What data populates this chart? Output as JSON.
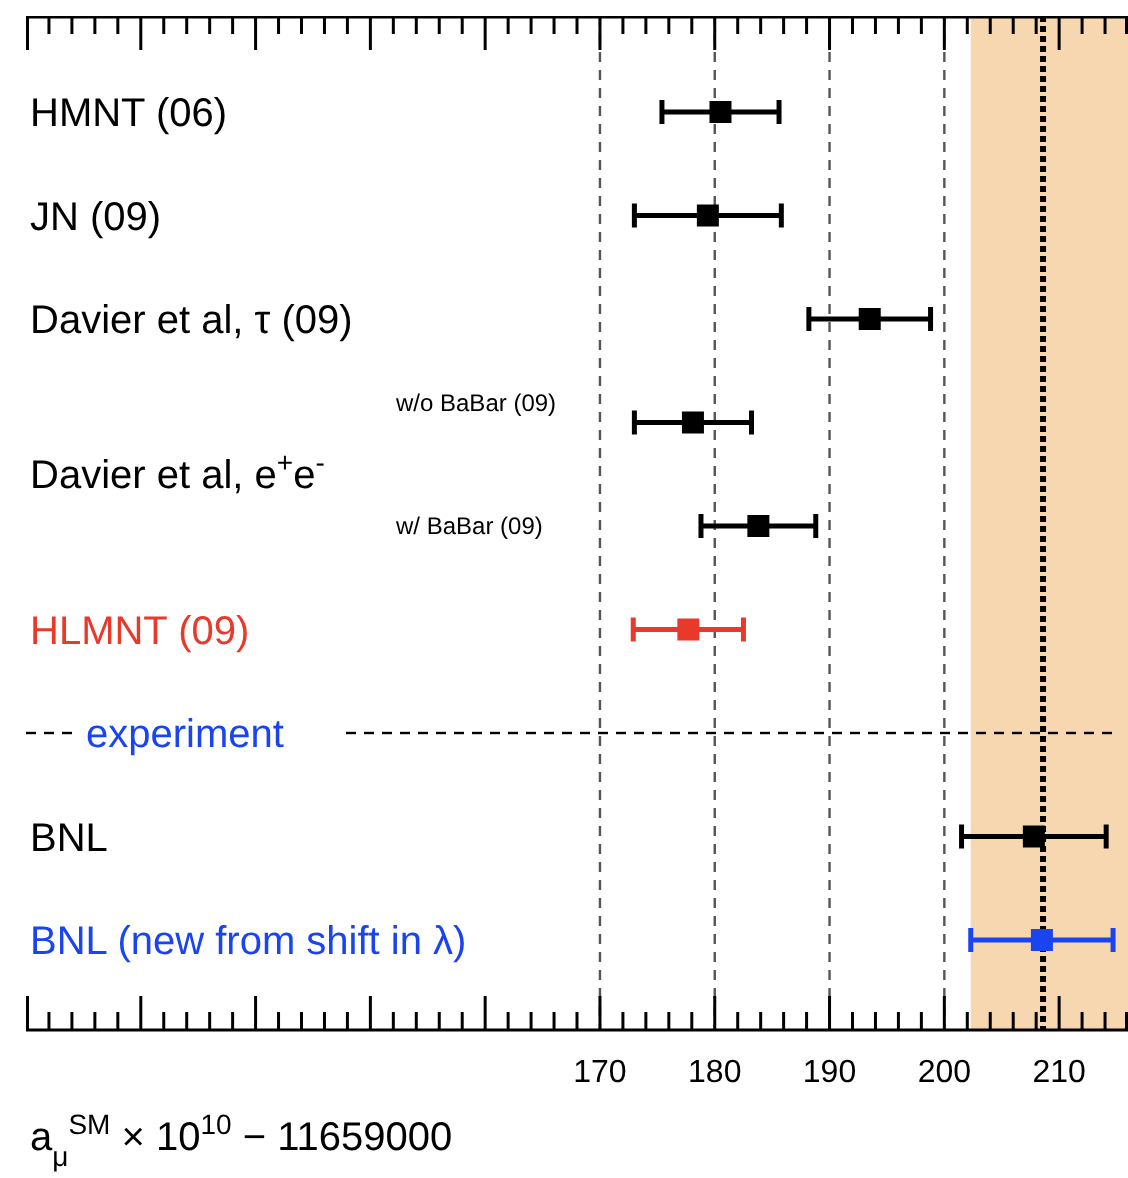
{
  "chart_data": {
    "type": "scatter",
    "orientation": "horizontal",
    "marker": "square",
    "categories": [
      "HMNT (06)",
      "JN (09)",
      "Davier et al, τ (09)",
      "w/o BaBar (09)",
      "w/  BaBar (09)",
      "HLMNT (09)",
      null,
      "BNL",
      "BNL (new from shift in λ)"
    ],
    "values": [
      180.5,
      179.4,
      193.5,
      178.1,
      183.8,
      177.7,
      null,
      207.8,
      208.5
    ],
    "errors": [
      5.1,
      6.4,
      5.3,
      5.1,
      5.0,
      4.8,
      null,
      6.3,
      6.2
    ],
    "colors": [
      "#000000",
      "#000000",
      "#000000",
      "#000000",
      "#000000",
      "#e8392b",
      null,
      "#000000",
      "#1a44f0"
    ],
    "xlabel": "a$_{μ}$$^{SM}$ × 10$^{10}$ − 11659000",
    "annotations": [
      "Davier et al, e$^{+}$e$^{-}$",
      "experiment"
    ],
    "xlim": [
      120,
      216
    ],
    "xticks": [
      {
        "value": 120,
        "label": null
      },
      {
        "value": 122,
        "label": null
      },
      {
        "value": 124,
        "label": null
      },
      {
        "value": 126,
        "label": null
      },
      {
        "value": 128,
        "label": null
      },
      {
        "value": 130,
        "label": null
      },
      {
        "value": 132,
        "label": null
      },
      {
        "value": 134,
        "label": null
      },
      {
        "value": 136,
        "label": null
      },
      {
        "value": 138,
        "label": null
      },
      {
        "value": 140,
        "label": null
      },
      {
        "value": 142,
        "label": null
      },
      {
        "value": 144,
        "label": null
      },
      {
        "value": 146,
        "label": null
      },
      {
        "value": 148,
        "label": null
      },
      {
        "value": 150,
        "label": null
      },
      {
        "value": 152,
        "label": null
      },
      {
        "value": 154,
        "label": null
      },
      {
        "value": 156,
        "label": null
      },
      {
        "value": 158,
        "label": null
      },
      {
        "value": 160,
        "label": null
      },
      {
        "value": 162,
        "label": null
      },
      {
        "value": 164,
        "label": null
      },
      {
        "value": 166,
        "label": null
      },
      {
        "value": 168,
        "label": null
      },
      170,
      {
        "value": 172,
        "label": null
      },
      {
        "value": 174,
        "label": null
      },
      {
        "value": 176,
        "label": null
      },
      {
        "value": 178,
        "label": null
      },
      180,
      {
        "value": 182,
        "label": null
      },
      {
        "value": 184,
        "label": null
      },
      {
        "value": 186,
        "label": null
      },
      {
        "value": 188,
        "label": null
      },
      190,
      {
        "value": 192,
        "label": null
      },
      {
        "value": 194,
        "label": null
      },
      {
        "value": 196,
        "label": null
      },
      {
        "value": 198,
        "label": null
      },
      200,
      {
        "value": 202,
        "label": null
      },
      {
        "value": 204,
        "label": null
      },
      {
        "value": 206,
        "label": null
      },
      {
        "value": 208,
        "label": null
      },
      210,
      {
        "value": 212,
        "label": null
      },
      {
        "value": 214,
        "label": null
      },
      {
        "value": 216,
        "label": null
      }
    ],
    "ref_lines": [
      {
        "axis": "x",
        "value": 170,
        "color": "#555555",
        "line_style": "dashed"
      },
      {
        "axis": "x",
        "value": 180,
        "color": "#555555",
        "line_style": "dashed"
      },
      {
        "axis": "x",
        "value": 190,
        "color": "#555555",
        "line_style": "dashed"
      },
      {
        "axis": "x",
        "value": 200,
        "color": "#555555",
        "line_style": "dashed"
      },
      {
        "axis": "x",
        "value": 208.6,
        "color": "#000000",
        "line_style": "dotted"
      }
    ],
    "bands": [
      {
        "axis": "x",
        "from": 202.3,
        "to": 216,
        "color": "#f7d7b0"
      }
    ]
  }
}
